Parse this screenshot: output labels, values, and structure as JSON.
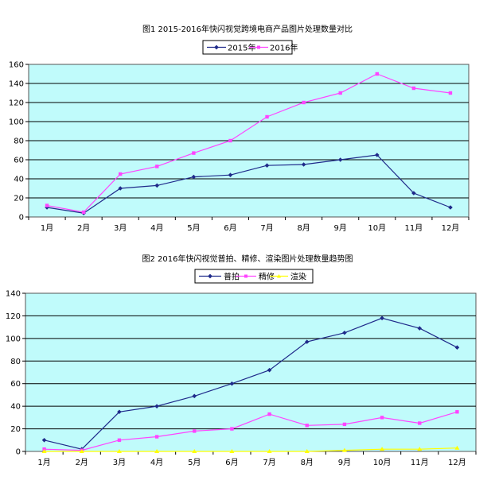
{
  "chart_data": [
    {
      "type": "line",
      "title": "图1 2015-2016年快闪视觉跨境电商产品图片处理数量对比",
      "xlabel": "",
      "ylabel": "",
      "categories": [
        "1月",
        "2月",
        "3月",
        "4月",
        "5月",
        "6月",
        "7月",
        "8月",
        "9月",
        "10月",
        "11月",
        "12月"
      ],
      "ylim": [
        0,
        160
      ],
      "yticks": [
        0,
        20,
        40,
        60,
        80,
        100,
        120,
        140,
        160
      ],
      "grid": true,
      "legend": "top",
      "plot_bg": "#c0fbfb",
      "series": [
        {
          "name": "2015年",
          "color": "#1f2a8a",
          "marker": "diamond",
          "values": [
            10,
            4,
            30,
            33,
            42,
            44,
            54,
            55,
            60,
            65,
            25,
            10
          ]
        },
        {
          "name": "2016年",
          "color": "#ff44ff",
          "marker": "square",
          "values": [
            12,
            5,
            45,
            53,
            67,
            80,
            105,
            120,
            130,
            150,
            135,
            130
          ]
        }
      ]
    },
    {
      "type": "line",
      "title": "图2 2016年快闪视觉普拍、精修、渲染图片处理数量趋势图",
      "xlabel": "",
      "ylabel": "",
      "categories": [
        "1月",
        "2月",
        "3月",
        "4月",
        "5月",
        "6月",
        "7月",
        "8月",
        "9月",
        "10月",
        "11月",
        "12月"
      ],
      "ylim": [
        0,
        140
      ],
      "yticks": [
        0,
        20,
        40,
        60,
        80,
        100,
        120,
        140
      ],
      "grid": true,
      "legend": "top",
      "plot_bg": "#c0fbfb",
      "series": [
        {
          "name": "普拍",
          "color": "#1f2a8a",
          "marker": "diamond",
          "values": [
            10,
            2,
            35,
            40,
            49,
            60,
            72,
            97,
            105,
            118,
            109,
            92
          ]
        },
        {
          "name": "精修",
          "color": "#ff44ff",
          "marker": "square",
          "values": [
            2,
            1,
            10,
            13,
            18,
            20,
            33,
            23,
            24,
            30,
            25,
            35
          ]
        },
        {
          "name": "渲染",
          "color": "#ffff00",
          "marker": "triangle",
          "values": [
            0,
            0,
            0,
            0,
            0,
            0,
            0,
            0,
            1,
            2,
            2,
            3
          ]
        }
      ]
    }
  ]
}
